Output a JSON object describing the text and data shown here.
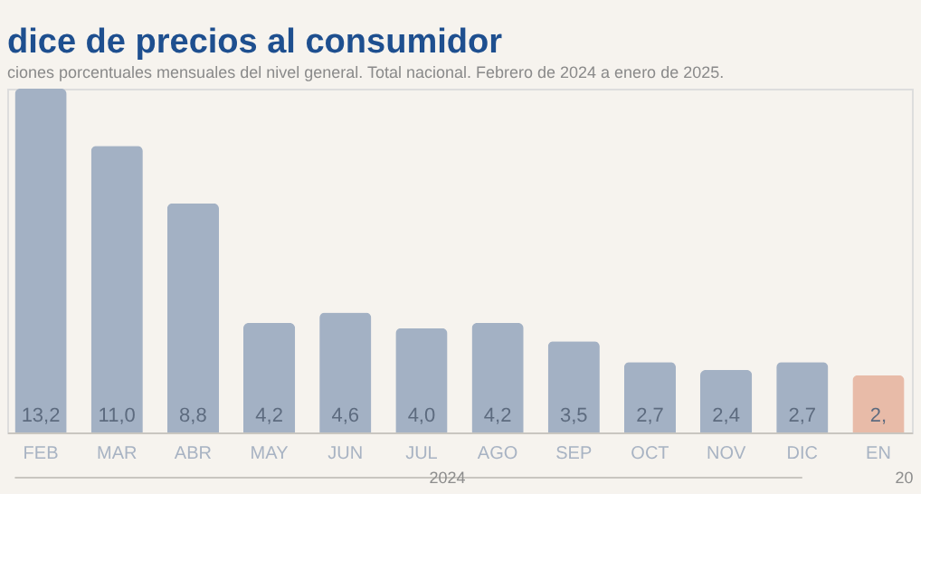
{
  "chart_data": {
    "type": "bar",
    "title": "dice de precios al consumidor",
    "subtitle": "ciones porcentuales mensuales del nivel general. Total nacional. Febrero de 2024 a enero de 2025.",
    "categories": [
      "FEB",
      "MAR",
      "ABR",
      "MAY",
      "JUN",
      "JUL",
      "AGO",
      "SEP",
      "OCT",
      "NOV",
      "DIC",
      "EN"
    ],
    "values": [
      13.2,
      11.0,
      8.8,
      4.2,
      4.6,
      4.0,
      4.2,
      3.5,
      2.7,
      2.4,
      2.7,
      2.2
    ],
    "value_labels": [
      "13,2",
      "11,0",
      "8,8",
      "4,2",
      "4,6",
      "4,0",
      "4,2",
      "3,5",
      "2,7",
      "2,4",
      "2,7",
      "2,"
    ],
    "colors": [
      "#a3b1c4",
      "#a3b1c4",
      "#a3b1c4",
      "#a3b1c4",
      "#a3b1c4",
      "#a3b1c4",
      "#a3b1c4",
      "#a3b1c4",
      "#a3b1c4",
      "#a3b1c4",
      "#a3b1c4",
      "#e8bba8"
    ],
    "annotations": [
      "2024",
      "20"
    ]
  }
}
